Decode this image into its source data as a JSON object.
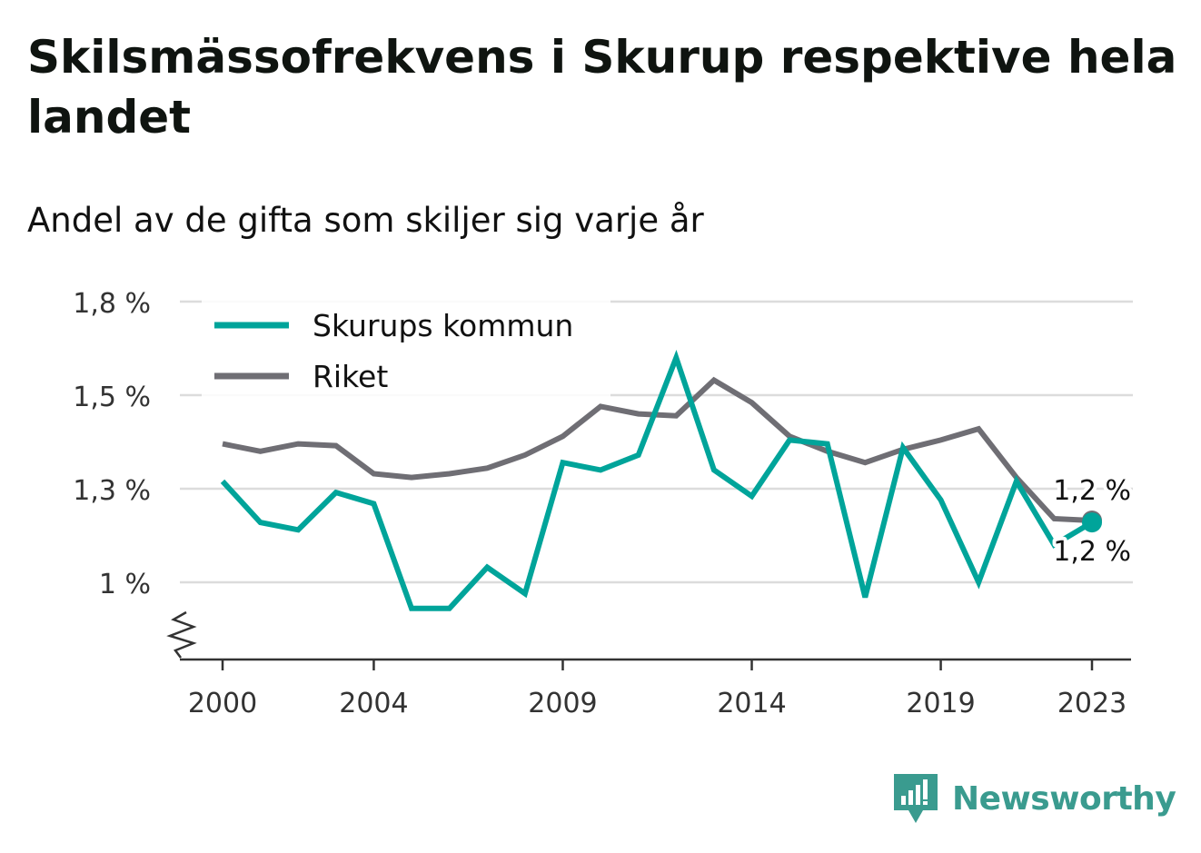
{
  "header": {
    "title": "Skilsmässofrekvens i Skurup respektive hela landet",
    "subtitle": "Andel av de gifta som skiljer sig varje år"
  },
  "brand": {
    "name": "Newsworthy",
    "color": "#3a9b8f",
    "icon": "newsworthy-logo-icon"
  },
  "chart_data": {
    "type": "line",
    "x": [
      2000,
      2001,
      2002,
      2003,
      2004,
      2005,
      2006,
      2007,
      2008,
      2009,
      2010,
      2011,
      2012,
      2013,
      2014,
      2015,
      2016,
      2017,
      2018,
      2019,
      2020,
      2021,
      2022,
      2023
    ],
    "xticks": [
      2000,
      2004,
      2009,
      2014,
      2019,
      2023
    ],
    "yticks": [
      {
        "value": 1.0,
        "label": "1 %"
      },
      {
        "value": 1.25,
        "label": "1,3 %"
      },
      {
        "value": 1.5,
        "label": "1,5 %"
      },
      {
        "value": 1.75,
        "label": "1,8 %"
      }
    ],
    "ylim": [
      0.8,
      1.75
    ],
    "axis_break": true,
    "grid": true,
    "legend_position": "top-left",
    "series": [
      {
        "name": "Skurups kommun",
        "color": "#00a49a",
        "values": [
          1.27,
          1.16,
          1.14,
          1.24,
          1.21,
          0.93,
          0.93,
          1.04,
          0.97,
          1.32,
          1.3,
          1.34,
          1.6,
          1.3,
          1.23,
          1.38,
          1.37,
          0.96,
          1.36,
          1.22,
          1.0,
          1.27,
          1.1,
          1.16
        ],
        "end_label": "1,2 %"
      },
      {
        "name": "Riket",
        "color": "#6f6e74",
        "values": [
          1.37,
          1.35,
          1.37,
          1.365,
          1.29,
          1.28,
          1.29,
          1.305,
          1.34,
          1.39,
          1.47,
          1.45,
          1.445,
          1.54,
          1.48,
          1.39,
          1.35,
          1.32,
          1.355,
          1.38,
          1.41,
          1.28,
          1.17,
          1.165
        ],
        "end_label": "1,2 %"
      }
    ]
  }
}
